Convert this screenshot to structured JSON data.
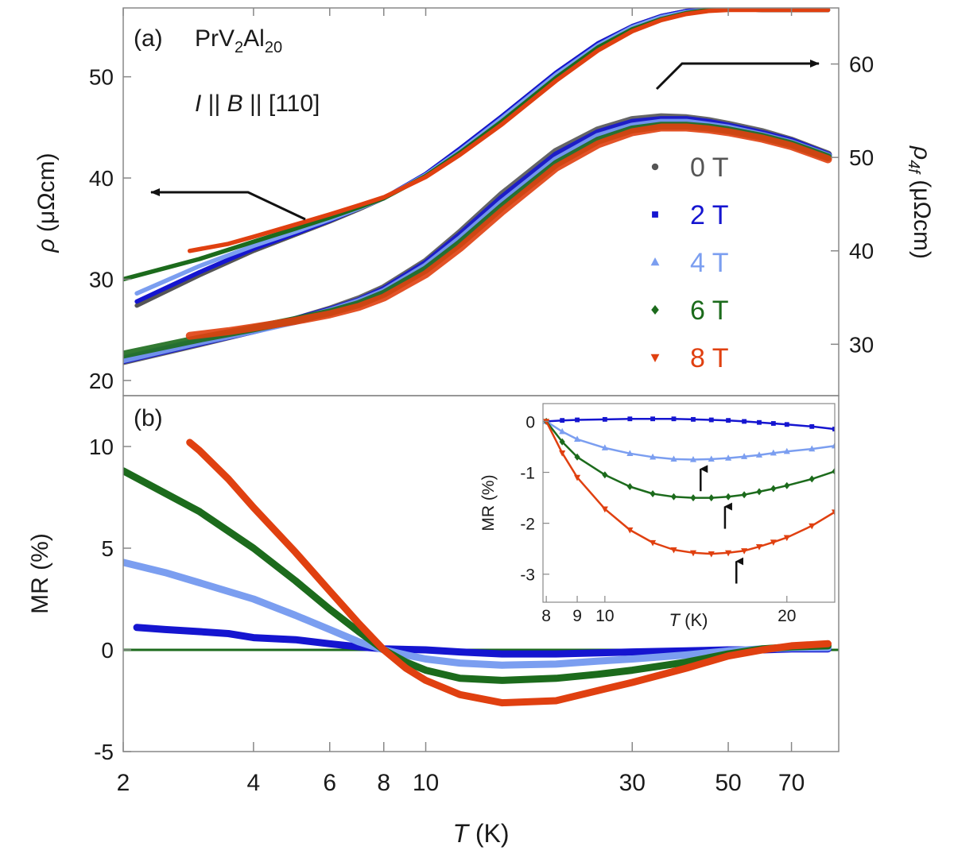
{
  "figure": {
    "xlabel_var": "T",
    "xlabel_unit": " (K)"
  },
  "chart_data": [
    {
      "type": "line",
      "panel_label": "(a)",
      "compound": {
        "base": "PrV",
        "sub1": "2",
        "mid": "Al",
        "sub2": "20"
      },
      "geometry": {
        "var1": "I",
        "sep1": " || ",
        "var2": "B",
        "sep2": " || [110]"
      },
      "left_axis": {
        "label_var": "ρ",
        "label_unit": " (μΩcm)",
        "ylim": [
          18.5,
          56.8
        ],
        "ticks": [
          20,
          30,
          40,
          50
        ]
      },
      "right_axis": {
        "label_var": "ρ",
        "label_sub": "4f",
        "label_unit": " (μΩcm)",
        "ylim": [
          24.5,
          66
        ],
        "ticks": [
          30,
          40,
          50,
          60
        ]
      },
      "xscale": "log",
      "xlim": [
        2,
        90
      ],
      "x_ticks": [
        2,
        4,
        6,
        8,
        10,
        30,
        50,
        70
      ],
      "legend": {
        "placement": "center-right",
        "entries": [
          {
            "label": "0 T",
            "color": "#555555",
            "marker": "circle"
          },
          {
            "label": "2 T",
            "color": "#1515d0",
            "marker": "square"
          },
          {
            "label": "4 T",
            "color": "#7b9ef0",
            "marker": "triangle-up"
          },
          {
            "label": "6 T",
            "color": "#1c6b1c",
            "marker": "diamond"
          },
          {
            "label": "8 T",
            "color": "#e04010",
            "marker": "triangle-down"
          }
        ]
      },
      "series_rho": [
        {
          "field": "0 T",
          "color": "#555555",
          "x": [
            2.15,
            3,
            4,
            5,
            6,
            7,
            8,
            10,
            12,
            15,
            20,
            25,
            30,
            35,
            40,
            45,
            50,
            60,
            70,
            85
          ],
          "y": [
            27.4,
            30.4,
            32.8,
            34.4,
            35.7,
            36.9,
            38.0,
            40.4,
            42.9,
            46.1,
            50.4,
            53.3,
            55.0,
            56.0,
            56.5,
            56.7,
            56.7,
            56.6,
            56.6,
            56.6
          ]
        },
        {
          "field": "2 T",
          "color": "#1515d0",
          "x": [
            2.15,
            3,
            4,
            5,
            6,
            7,
            8,
            10,
            12,
            15,
            20,
            25,
            30,
            35,
            40,
            45,
            50,
            60,
            70,
            85
          ],
          "y": [
            27.8,
            30.7,
            33.0,
            34.5,
            35.8,
            37.0,
            38.0,
            40.4,
            42.9,
            46.1,
            50.4,
            53.3,
            55.0,
            56.0,
            56.5,
            56.7,
            56.7,
            56.6,
            56.6,
            56.6
          ]
        },
        {
          "field": "4 T",
          "color": "#7b9ef0",
          "x": [
            2.15,
            3,
            4,
            5,
            6,
            7,
            8,
            10,
            12,
            15,
            20,
            25,
            30,
            35,
            40,
            45,
            50,
            60,
            70,
            85
          ],
          "y": [
            28.6,
            31.3,
            33.3,
            34.7,
            35.9,
            37.0,
            38.0,
            40.3,
            42.7,
            45.9,
            50.2,
            53.1,
            54.9,
            55.9,
            56.4,
            56.6,
            56.7,
            56.6,
            56.6,
            56.6
          ]
        },
        {
          "field": "6 T",
          "color": "#1c6b1c",
          "x": [
            2.0,
            3,
            4,
            5,
            6,
            7,
            8,
            10,
            12,
            15,
            20,
            25,
            30,
            35,
            40,
            45,
            50,
            60,
            70,
            85
          ],
          "y": [
            30.0,
            32.0,
            33.7,
            35.0,
            36.1,
            37.1,
            38.0,
            40.2,
            42.5,
            45.6,
            49.9,
            52.9,
            54.7,
            55.7,
            56.3,
            56.6,
            56.7,
            56.6,
            56.6,
            56.6
          ]
        },
        {
          "field": "8 T",
          "color": "#e04010",
          "x": [
            2.85,
            3.5,
            4,
            5,
            6,
            7,
            8,
            10,
            12,
            15,
            20,
            25,
            30,
            35,
            40,
            45,
            50,
            60,
            70,
            85
          ],
          "y": [
            32.8,
            33.5,
            34.2,
            35.4,
            36.4,
            37.3,
            38.1,
            40.1,
            42.3,
            45.3,
            49.6,
            52.6,
            54.5,
            55.6,
            56.2,
            56.5,
            56.6,
            56.6,
            56.6,
            56.6
          ]
        }
      ],
      "series_rho4f": [
        {
          "field": "0 T",
          "color": "#555555",
          "x": [
            2.0,
            3,
            4,
            5,
            6,
            7,
            8,
            10,
            12,
            15,
            20,
            25,
            30,
            35,
            40,
            45,
            50,
            60,
            70,
            85
          ],
          "y": [
            28.2,
            30.1,
            31.5,
            32.6,
            33.7,
            34.8,
            36.0,
            38.8,
            41.9,
            46.0,
            50.6,
            52.9,
            54.0,
            54.3,
            54.2,
            53.9,
            53.5,
            52.7,
            51.8,
            50.3
          ]
        },
        {
          "field": "2 T",
          "color": "#1515d0",
          "x": [
            2.0,
            3,
            4,
            5,
            6,
            7,
            8,
            10,
            12,
            15,
            20,
            25,
            30,
            35,
            40,
            45,
            50,
            60,
            70,
            85
          ],
          "y": [
            28.3,
            30.2,
            31.5,
            32.6,
            33.6,
            34.6,
            35.8,
            38.6,
            41.6,
            45.6,
            50.2,
            52.6,
            53.7,
            54.0,
            54.0,
            53.7,
            53.3,
            52.5,
            51.7,
            50.2
          ]
        },
        {
          "field": "4 T",
          "color": "#7b9ef0",
          "x": [
            2.0,
            3,
            4,
            5,
            6,
            7,
            8,
            10,
            12,
            15,
            20,
            25,
            30,
            35,
            40,
            45,
            50,
            60,
            70,
            85
          ],
          "y": [
            28.4,
            30.3,
            31.5,
            32.5,
            33.5,
            34.5,
            35.6,
            38.3,
            41.2,
            45.1,
            49.7,
            52.2,
            53.3,
            53.7,
            53.7,
            53.4,
            53.1,
            52.3,
            51.5,
            50.1
          ]
        },
        {
          "field": "6 T",
          "color": "#1c6b1c",
          "x": [
            2.0,
            3,
            4,
            5,
            6,
            7,
            8,
            10,
            12,
            15,
            20,
            25,
            30,
            35,
            40,
            45,
            50,
            60,
            70,
            85
          ],
          "y": [
            28.9,
            30.6,
            31.7,
            32.6,
            33.4,
            34.3,
            35.4,
            38.0,
            40.8,
            44.7,
            49.3,
            51.8,
            53.0,
            53.4,
            53.4,
            53.2,
            52.9,
            52.2,
            51.4,
            50.0
          ]
        },
        {
          "field": "8 T",
          "color": "#e04010",
          "x": [
            2.85,
            3.5,
            4,
            5,
            6,
            7,
            8,
            10,
            12,
            15,
            20,
            25,
            30,
            35,
            40,
            45,
            50,
            60,
            70,
            85
          ],
          "y": [
            30.9,
            31.4,
            31.8,
            32.5,
            33.2,
            34.0,
            35.0,
            37.5,
            40.3,
            44.2,
            48.9,
            51.4,
            52.7,
            53.2,
            53.2,
            53.0,
            52.7,
            52.0,
            51.2,
            49.8
          ]
        }
      ]
    },
    {
      "type": "line",
      "panel_label": "(b)",
      "ylabel": "MR (%)",
      "ylim": [
        -5,
        12.5
      ],
      "y_ticks": [
        -5,
        0,
        5,
        10
      ],
      "xscale": "log",
      "xlim": [
        2,
        90
      ],
      "series": [
        {
          "field": "0 T",
          "color": "#555555",
          "x": [
            2,
            90
          ],
          "y": [
            0,
            0
          ]
        },
        {
          "field": "2 T",
          "color": "#1515d0",
          "x": [
            2.15,
            2.5,
            3,
            3.5,
            4,
            5,
            6,
            7,
            8,
            10,
            12,
            15,
            20,
            25,
            30,
            40,
            50,
            60,
            70,
            85
          ],
          "y": [
            1.1,
            1.0,
            0.9,
            0.8,
            0.6,
            0.5,
            0.3,
            0.15,
            0.05,
            0.0,
            -0.1,
            -0.2,
            -0.2,
            -0.15,
            -0.1,
            -0.05,
            0.0,
            0.0,
            0.05,
            0.05
          ]
        },
        {
          "field": "4 T",
          "color": "#7b9ef0",
          "x": [
            2.0,
            2.5,
            3,
            4,
            5,
            6,
            7,
            8,
            9,
            10,
            12,
            15,
            20,
            25,
            30,
            40,
            50,
            60,
            70,
            85
          ],
          "y": [
            4.3,
            3.8,
            3.3,
            2.5,
            1.7,
            1.0,
            0.4,
            0.0,
            -0.25,
            -0.45,
            -0.65,
            -0.75,
            -0.7,
            -0.55,
            -0.45,
            -0.25,
            -0.05,
            0.05,
            0.1,
            0.1
          ]
        },
        {
          "field": "6 T",
          "color": "#1c6b1c",
          "x": [
            2.0,
            2.5,
            3,
            4,
            5,
            6,
            7,
            8,
            9,
            10,
            12,
            15,
            20,
            25,
            30,
            40,
            50,
            60,
            70,
            85
          ],
          "y": [
            8.8,
            7.7,
            6.8,
            5.0,
            3.4,
            2.0,
            0.9,
            0.0,
            -0.6,
            -1.0,
            -1.4,
            -1.5,
            -1.4,
            -1.2,
            -1.0,
            -0.6,
            -0.2,
            0.05,
            0.15,
            0.2
          ]
        },
        {
          "field": "8 T",
          "color": "#e04010",
          "x": [
            2.85,
            3,
            3.5,
            4,
            5,
            6,
            7,
            8,
            9,
            10,
            12,
            15,
            20,
            25,
            30,
            40,
            50,
            60,
            70,
            85
          ],
          "y": [
            10.2,
            9.8,
            8.4,
            7.0,
            4.8,
            2.9,
            1.3,
            0.0,
            -0.9,
            -1.5,
            -2.2,
            -2.6,
            -2.5,
            -2.0,
            -1.6,
            -0.9,
            -0.3,
            0.0,
            0.2,
            0.3
          ]
        }
      ]
    },
    {
      "type": "line",
      "panel_label": "inset",
      "ylabel": "MR (%)",
      "xlabel_var": "T",
      "xlabel_unit": " (K)",
      "xscale": "log",
      "xlim": [
        7.9,
        24
      ],
      "x_ticks": [
        8,
        9,
        10,
        20
      ],
      "ylim": [
        -3.55,
        0.35
      ],
      "y_ticks": [
        0,
        -1,
        -2,
        -3
      ],
      "minima_arrows_T": [
        14.4,
        15.8,
        16.5
      ],
      "series": [
        {
          "field": "2 T",
          "color": "#1515d0",
          "x": [
            8,
            8.5,
            9,
            10,
            11,
            12,
            13,
            14,
            15,
            16,
            17,
            18,
            19,
            20,
            22,
            24
          ],
          "y": [
            0,
            0.02,
            0.03,
            0.04,
            0.05,
            0.05,
            0.05,
            0.04,
            0.03,
            0.02,
            0.0,
            -0.02,
            -0.04,
            -0.06,
            -0.1,
            -0.15
          ]
        },
        {
          "field": "4 T",
          "color": "#7b9ef0",
          "x": [
            8,
            8.5,
            9,
            10,
            11,
            12,
            13,
            14,
            15,
            16,
            17,
            18,
            19,
            20,
            22,
            24
          ],
          "y": [
            0,
            -0.2,
            -0.35,
            -0.52,
            -0.63,
            -0.7,
            -0.74,
            -0.75,
            -0.74,
            -0.72,
            -0.69,
            -0.66,
            -0.62,
            -0.59,
            -0.54,
            -0.48
          ]
        },
        {
          "field": "6 T",
          "color": "#1c6b1c",
          "x": [
            8,
            8.5,
            9,
            10,
            11,
            12,
            13,
            14,
            15,
            16,
            17,
            18,
            19,
            20,
            22,
            24
          ],
          "y": [
            0,
            -0.4,
            -0.7,
            -1.05,
            -1.28,
            -1.42,
            -1.48,
            -1.5,
            -1.5,
            -1.48,
            -1.44,
            -1.38,
            -1.32,
            -1.26,
            -1.13,
            -0.98
          ]
        },
        {
          "field": "8 T",
          "color": "#e04010",
          "x": [
            8,
            8.5,
            9,
            10,
            11,
            12,
            13,
            14,
            15,
            16,
            17,
            18,
            19,
            20,
            22,
            24
          ],
          "y": [
            0,
            -0.62,
            -1.1,
            -1.72,
            -2.13,
            -2.38,
            -2.52,
            -2.58,
            -2.6,
            -2.58,
            -2.54,
            -2.46,
            -2.37,
            -2.28,
            -2.05,
            -1.78
          ]
        }
      ]
    }
  ]
}
